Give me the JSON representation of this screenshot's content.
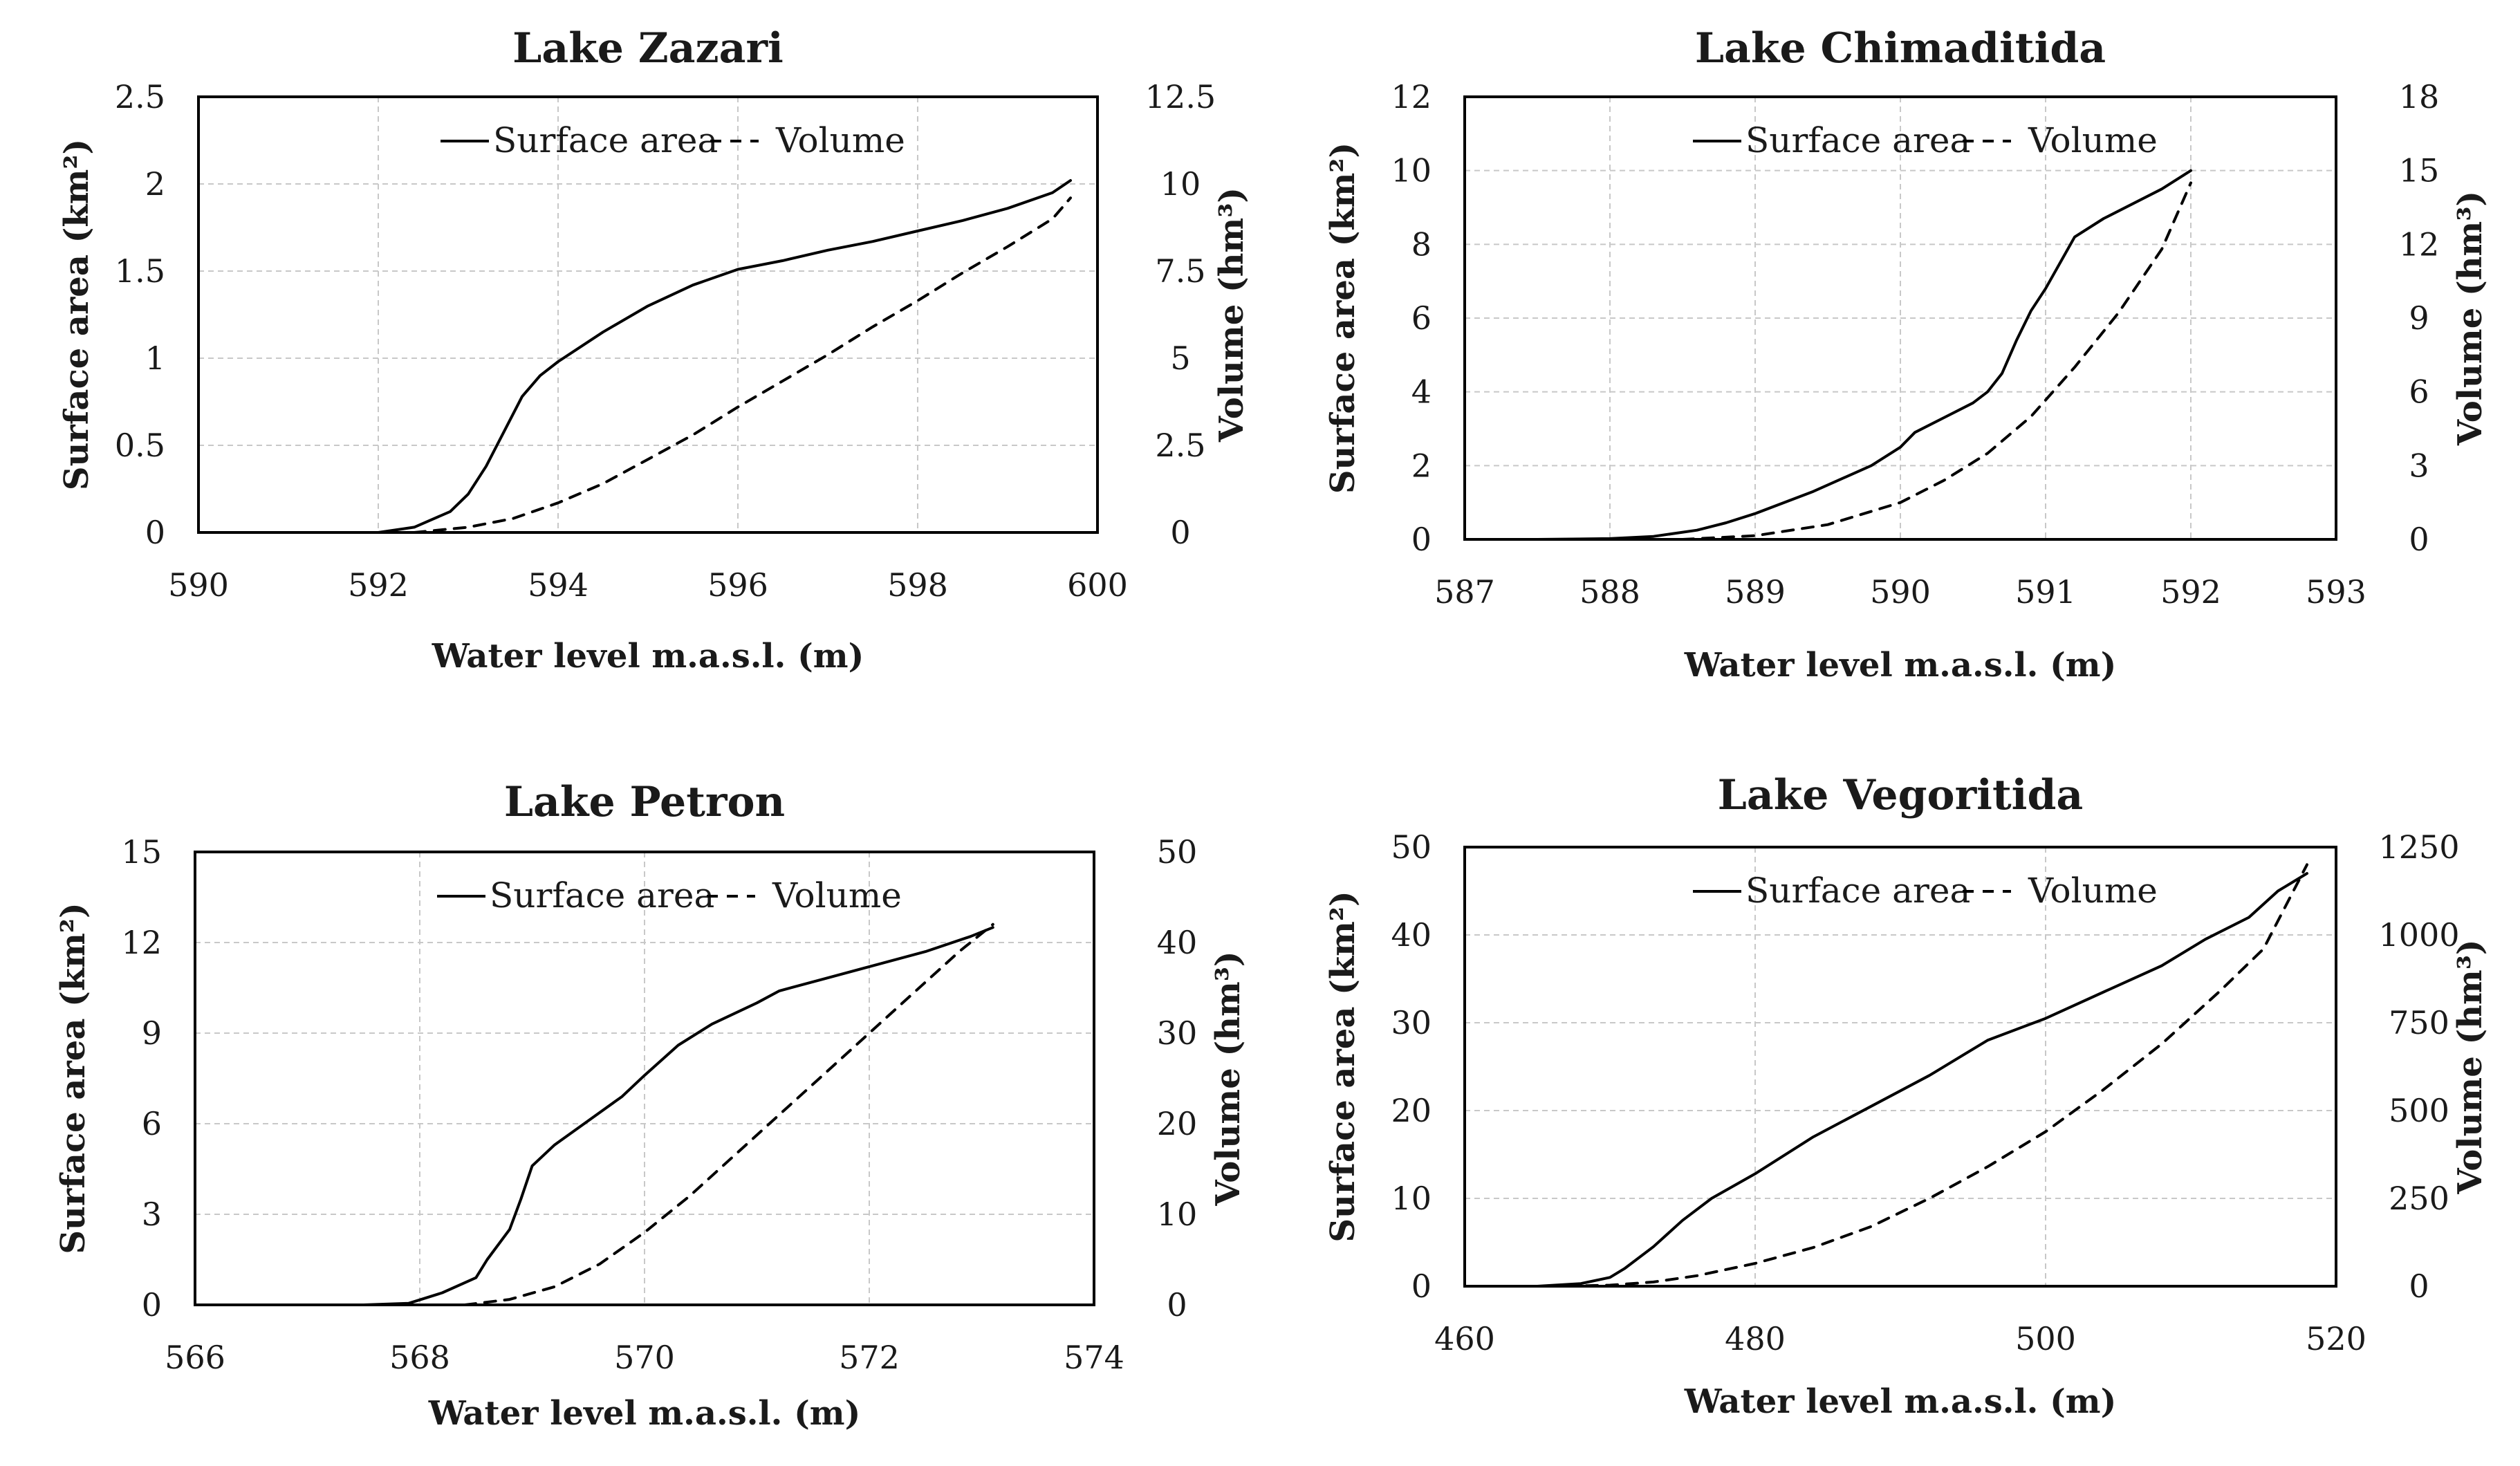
{
  "chart_data": [
    {
      "type": "line",
      "title": "Lake Zazari",
      "xlabel": "Water level m.a.s.l. (m)",
      "ylabel": "Surface area (km²)",
      "y2label": "Volume (hm³)",
      "xlim": [
        590,
        600
      ],
      "ylim": [
        0,
        2.5
      ],
      "y2lim": [
        0,
        12.5
      ],
      "xticks": [
        590,
        592,
        594,
        596,
        598,
        600
      ],
      "yticks": [
        0,
        0.5,
        1,
        1.5,
        2,
        2.5
      ],
      "y2ticks": [
        0,
        2.5,
        5,
        7.5,
        10,
        12.5
      ],
      "legend": {
        "placement": "top-center",
        "labels": [
          "Surface area",
          "Volume"
        ]
      },
      "grid": true,
      "series": [
        {
          "name": "Surface area",
          "axis": "left",
          "style": "solid",
          "points": [
            [
              592.0,
              0
            ],
            [
              592.4,
              0.03
            ],
            [
              592.8,
              0.12
            ],
            [
              593.0,
              0.22
            ],
            [
              593.2,
              0.38
            ],
            [
              593.4,
              0.58
            ],
            [
              593.6,
              0.78
            ],
            [
              593.8,
              0.9
            ],
            [
              594.0,
              0.98
            ],
            [
              594.5,
              1.15
            ],
            [
              595.0,
              1.3
            ],
            [
              595.5,
              1.42
            ],
            [
              596.0,
              1.51
            ],
            [
              596.5,
              1.56
            ],
            [
              597.0,
              1.62
            ],
            [
              597.5,
              1.67
            ],
            [
              598.0,
              1.73
            ],
            [
              598.5,
              1.79
            ],
            [
              599.0,
              1.86
            ],
            [
              599.5,
              1.95
            ],
            [
              599.7,
              2.02
            ]
          ]
        },
        {
          "name": "Volume",
          "axis": "right",
          "style": "dashed",
          "points": [
            [
              592.4,
              0
            ],
            [
              593.0,
              0.15
            ],
            [
              593.5,
              0.4
            ],
            [
              594.0,
              0.85
            ],
            [
              594.5,
              1.4
            ],
            [
              595.0,
              2.1
            ],
            [
              595.5,
              2.8
            ],
            [
              596.0,
              3.6
            ],
            [
              596.5,
              4.35
            ],
            [
              597.0,
              5.1
            ],
            [
              597.5,
              5.9
            ],
            [
              598.0,
              6.65
            ],
            [
              598.5,
              7.45
            ],
            [
              599.0,
              8.2
            ],
            [
              599.5,
              9.0
            ],
            [
              599.7,
              9.6
            ]
          ]
        }
      ]
    },
    {
      "type": "line",
      "title": "Lake Chimaditida",
      "xlabel": "Water level m.a.s.l. (m)",
      "ylabel": "Surface area (km²)",
      "y2label": "Volume (hm³)",
      "xlim": [
        587,
        593
      ],
      "ylim": [
        0,
        12
      ],
      "y2lim": [
        0,
        18
      ],
      "xticks": [
        587,
        588,
        589,
        590,
        591,
        592,
        593
      ],
      "yticks": [
        0,
        2,
        4,
        6,
        8,
        10,
        12
      ],
      "y2ticks": [
        0,
        3,
        6,
        9,
        12,
        15,
        18
      ],
      "legend": {
        "placement": "top-center",
        "labels": [
          "Surface area",
          "Volume"
        ]
      },
      "grid": true,
      "series": [
        {
          "name": "Surface area",
          "axis": "left",
          "style": "solid",
          "points": [
            [
              587.0,
              0
            ],
            [
              587.5,
              0
            ],
            [
              588.0,
              0.02
            ],
            [
              588.3,
              0.08
            ],
            [
              588.6,
              0.25
            ],
            [
              588.8,
              0.45
            ],
            [
              589.0,
              0.7
            ],
            [
              589.4,
              1.3
            ],
            [
              589.8,
              2.0
            ],
            [
              590.0,
              2.5
            ],
            [
              590.1,
              2.9
            ],
            [
              590.3,
              3.3
            ],
            [
              590.5,
              3.7
            ],
            [
              590.6,
              4.0
            ],
            [
              590.7,
              4.5
            ],
            [
              590.8,
              5.4
            ],
            [
              590.9,
              6.2
            ],
            [
              591.0,
              6.8
            ],
            [
              591.1,
              7.5
            ],
            [
              591.2,
              8.2
            ],
            [
              591.4,
              8.7
            ],
            [
              591.6,
              9.1
            ],
            [
              591.8,
              9.5
            ],
            [
              592.0,
              10.0
            ]
          ]
        },
        {
          "name": "Volume",
          "axis": "right",
          "style": "dashed",
          "points": [
            [
              588.5,
              0
            ],
            [
              589.0,
              0.15
            ],
            [
              589.5,
              0.6
            ],
            [
              590.0,
              1.5
            ],
            [
              590.3,
              2.4
            ],
            [
              590.6,
              3.5
            ],
            [
              590.9,
              5.0
            ],
            [
              591.2,
              7.0
            ],
            [
              591.5,
              9.2
            ],
            [
              591.8,
              11.8
            ],
            [
              592.0,
              14.5
            ]
          ]
        }
      ]
    },
    {
      "type": "line",
      "title": "Lake Petron",
      "xlabel": "Water level m.a.s.l. (m)",
      "ylabel": "Surface area (km²)",
      "y2label": "Volume (hm³)",
      "xlim": [
        566,
        574
      ],
      "ylim": [
        0,
        15
      ],
      "y2lim": [
        0,
        50
      ],
      "xticks": [
        566,
        568,
        570,
        572,
        574
      ],
      "yticks": [
        0,
        3,
        6,
        9,
        12,
        15
      ],
      "y2ticks": [
        0,
        10,
        20,
        30,
        40,
        50
      ],
      "legend": {
        "placement": "top-center",
        "labels": [
          "Surface area",
          "Volume"
        ]
      },
      "grid": true,
      "series": [
        {
          "name": "Surface area",
          "axis": "left",
          "style": "solid",
          "points": [
            [
              567.5,
              0
            ],
            [
              567.9,
              0.05
            ],
            [
              568.2,
              0.4
            ],
            [
              568.5,
              0.9
            ],
            [
              568.6,
              1.5
            ],
            [
              568.8,
              2.5
            ],
            [
              568.9,
              3.5
            ],
            [
              569.0,
              4.6
            ],
            [
              569.2,
              5.3
            ],
            [
              569.5,
              6.1
            ],
            [
              569.8,
              6.9
            ],
            [
              570.0,
              7.6
            ],
            [
              570.3,
              8.6
            ],
            [
              570.6,
              9.3
            ],
            [
              571.0,
              10.0
            ],
            [
              571.2,
              10.4
            ],
            [
              571.6,
              10.8
            ],
            [
              572.0,
              11.2
            ],
            [
              572.5,
              11.7
            ],
            [
              572.9,
              12.2
            ],
            [
              573.1,
              12.5
            ]
          ]
        },
        {
          "name": "Volume",
          "axis": "right",
          "style": "dashed",
          "points": [
            [
              568.4,
              0
            ],
            [
              568.8,
              0.6
            ],
            [
              569.2,
              2.0
            ],
            [
              569.6,
              4.5
            ],
            [
              570.0,
              8.0
            ],
            [
              570.4,
              12.0
            ],
            [
              570.8,
              16.5
            ],
            [
              571.2,
              21.0
            ],
            [
              571.6,
              25.5
            ],
            [
              572.0,
              30.0
            ],
            [
              572.4,
              34.5
            ],
            [
              572.8,
              39.0
            ],
            [
              573.1,
              42.0
            ]
          ]
        }
      ]
    },
    {
      "type": "line",
      "title": "Lake Vegoritida",
      "xlabel": "Water level m.a.s.l. (m)",
      "ylabel": "Surface area (km²)",
      "y2label": "Volume (hm³)",
      "xlim": [
        460,
        520
      ],
      "ylim": [
        0,
        50
      ],
      "y2lim": [
        0,
        1250
      ],
      "xticks": [
        460,
        480,
        500,
        520
      ],
      "yticks": [
        0,
        10,
        20,
        30,
        40,
        50
      ],
      "y2ticks": [
        0,
        250,
        500,
        750,
        1000,
        1250
      ],
      "legend": {
        "placement": "top-center",
        "labels": [
          "Surface area",
          "Volume"
        ]
      },
      "grid": true,
      "series": [
        {
          "name": "Surface area",
          "axis": "left",
          "style": "solid",
          "points": [
            [
              465,
              0
            ],
            [
              468,
              0.3
            ],
            [
              470,
              1.0
            ],
            [
              471,
              2.0
            ],
            [
              473,
              4.5
            ],
            [
              475,
              7.5
            ],
            [
              477,
              10.0
            ],
            [
              480,
              12.8
            ],
            [
              484,
              17.0
            ],
            [
              488,
              20.5
            ],
            [
              492,
              24.0
            ],
            [
              496,
              28.0
            ],
            [
              500,
              30.5
            ],
            [
              504,
              33.5
            ],
            [
              508,
              36.5
            ],
            [
              511,
              39.5
            ],
            [
              514,
              42.0
            ],
            [
              516,
              45.0
            ],
            [
              518,
              47.0
            ]
          ]
        },
        {
          "name": "Volume",
          "axis": "right",
          "style": "dashed",
          "points": [
            [
              467,
              0
            ],
            [
              470,
              3
            ],
            [
              473,
              12
            ],
            [
              476,
              30
            ],
            [
              480,
              65
            ],
            [
              484,
              110
            ],
            [
              488,
              170
            ],
            [
              492,
              250
            ],
            [
              496,
              340
            ],
            [
              500,
              440
            ],
            [
              504,
              560
            ],
            [
              508,
              690
            ],
            [
              512,
              840
            ],
            [
              515,
              960
            ],
            [
              518,
              1200
            ]
          ]
        }
      ]
    }
  ]
}
